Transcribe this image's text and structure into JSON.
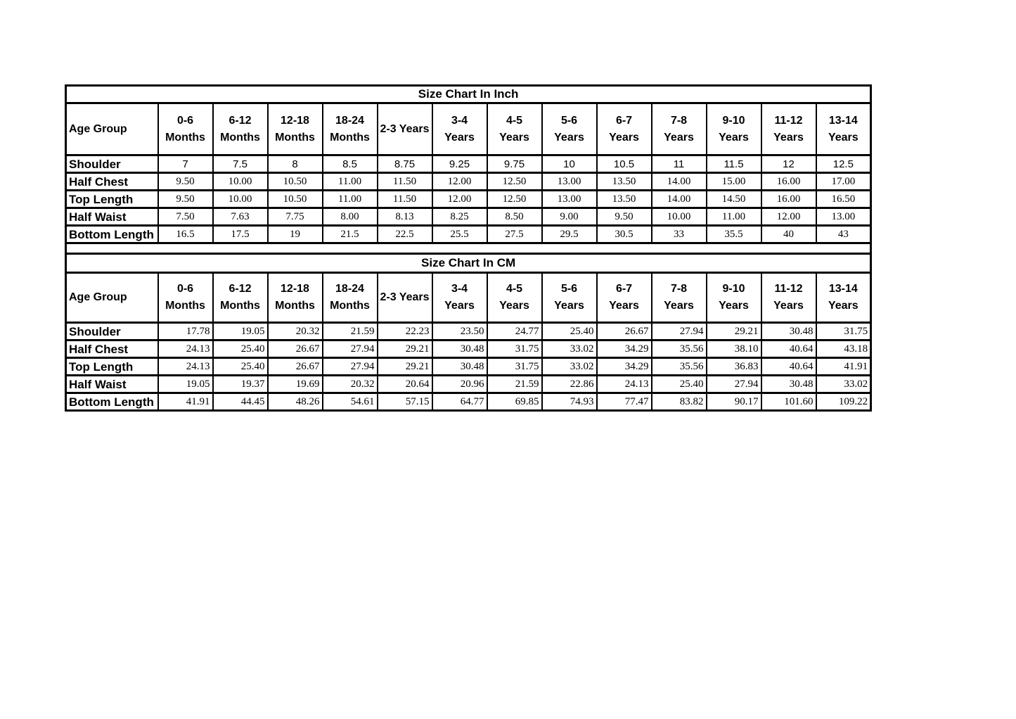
{
  "page": {
    "background_color": "#ffffff",
    "table_border_color": "#000000"
  },
  "tables": [
    {
      "title": "Size Chart In Inch",
      "unit": "inch",
      "header": {
        "row_label": "Age Group",
        "columns": [
          "0-6\nMonths",
          "6-12\nMonths",
          "12-18\nMonths",
          "18-24\nMonths",
          "2-3 Years",
          "3-4\nYears",
          "4-5\nYears",
          "5-6\nYears",
          "6-7\nYears",
          "7-8\nYears",
          "9-10\nYears",
          "11-12\nYears",
          "13-14\nYears"
        ]
      },
      "rows": [
        {
          "label": "Shoulder",
          "values": [
            "7",
            "7.5",
            "8",
            "8.5",
            "8.75",
            "9.25",
            "9.75",
            "10",
            "10.5",
            "11",
            "11.5",
            "12",
            "12.5"
          ]
        },
        {
          "label": "Half Chest",
          "values": [
            "9.50",
            "10.00",
            "10.50",
            "11.00",
            "11.50",
            "12.00",
            "12.50",
            "13.00",
            "13.50",
            "14.00",
            "15.00",
            "16.00",
            "17.00"
          ]
        },
        {
          "label": "Top Length",
          "values": [
            "9.50",
            "10.00",
            "10.50",
            "11.00",
            "11.50",
            "12.00",
            "12.50",
            "13.00",
            "13.50",
            "14.00",
            "14.50",
            "16.00",
            "16.50"
          ]
        },
        {
          "label": "Half Waist",
          "values": [
            "7.50",
            "7.63",
            "7.75",
            "8.00",
            "8.13",
            "8.25",
            "8.50",
            "9.00",
            "9.50",
            "10.00",
            "11.00",
            "12.00",
            "13.00"
          ]
        },
        {
          "label": "Bottom Length",
          "values": [
            "16.5",
            "17.5",
            "19",
            "21.5",
            "22.5",
            "25.5",
            "27.5",
            "29.5",
            "30.5",
            "33",
            "35.5",
            "40",
            "43"
          ]
        }
      ]
    },
    {
      "title": "Size Chart In CM",
      "unit": "cm",
      "header": {
        "row_label": "Age Group",
        "columns": [
          "0-6\nMonths",
          "6-12\nMonths",
          "12-18\nMonths",
          "18-24\nMonths",
          "2-3 Years",
          "3-4\nYears",
          "4-5\nYears",
          "5-6\nYears",
          "6-7\nYears",
          "7-8\nYears",
          "9-10\nYears",
          "11-12\nYears",
          "13-14\nYears"
        ]
      },
      "rows": [
        {
          "label": "Shoulder",
          "values": [
            "17.78",
            "19.05",
            "20.32",
            "21.59",
            "22.23",
            "23.50",
            "24.77",
            "25.40",
            "26.67",
            "27.94",
            "29.21",
            "30.48",
            "31.75"
          ]
        },
        {
          "label": "Half Chest",
          "values": [
            "24.13",
            "25.40",
            "26.67",
            "27.94",
            "29.21",
            "30.48",
            "31.75",
            "33.02",
            "34.29",
            "35.56",
            "38.10",
            "40.64",
            "43.18"
          ]
        },
        {
          "label": "Top Length",
          "values": [
            "24.13",
            "25.40",
            "26.67",
            "27.94",
            "29.21",
            "30.48",
            "31.75",
            "33.02",
            "34.29",
            "35.56",
            "36.83",
            "40.64",
            "41.91"
          ]
        },
        {
          "label": "Half Waist",
          "values": [
            "19.05",
            "19.37",
            "19.69",
            "20.32",
            "20.64",
            "20.96",
            "21.59",
            "22.86",
            "24.13",
            "25.40",
            "27.94",
            "30.48",
            "33.02"
          ]
        },
        {
          "label": "Bottom Length",
          "values": [
            "41.91",
            "44.45",
            "48.26",
            "54.61",
            "57.15",
            "64.77",
            "69.85",
            "74.93",
            "77.47",
            "83.82",
            "90.17",
            "101.60",
            "109.22"
          ]
        }
      ]
    }
  ]
}
